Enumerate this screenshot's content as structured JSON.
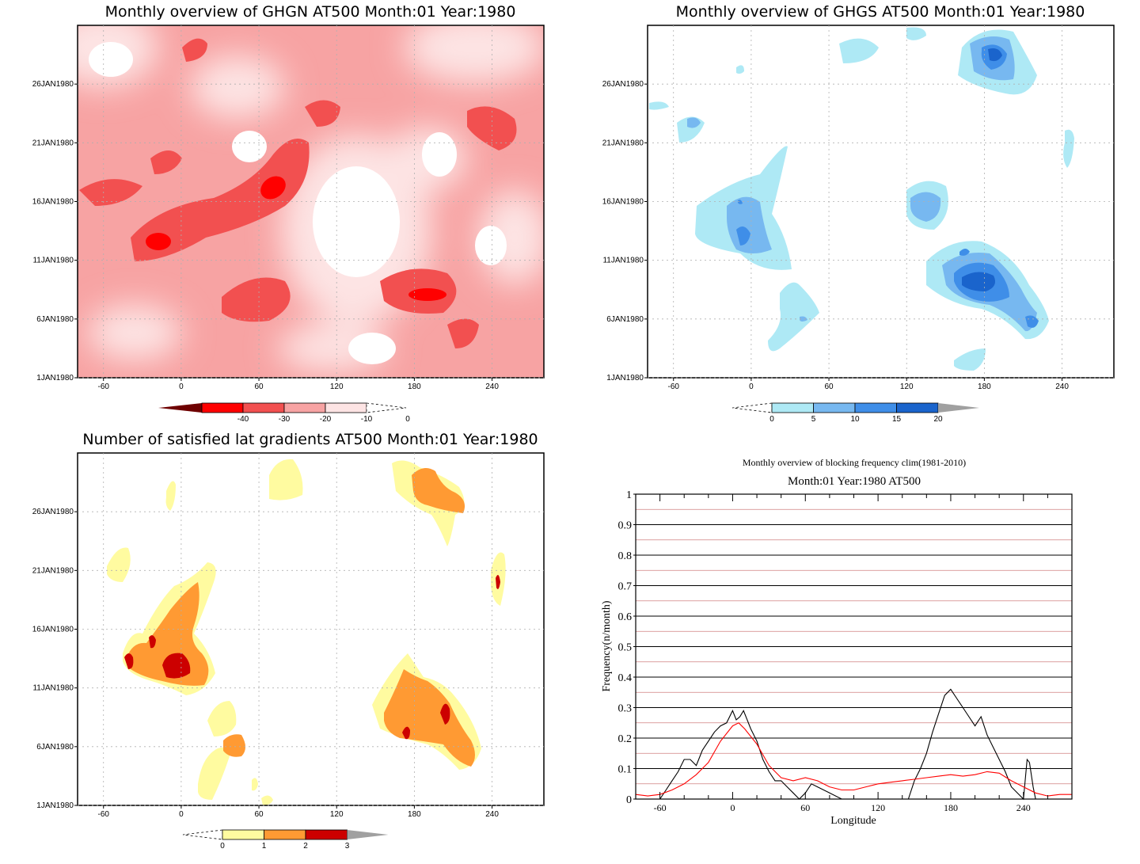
{
  "colors": {
    "ghgn_levels": [
      "#6e0000",
      "#ff0000",
      "#f25050",
      "#f7a3a3",
      "#fde4e4",
      "#ffffff"
    ],
    "ghgs_levels": [
      "#ffffff",
      "#aee9f5",
      "#77b8f0",
      "#3f8ee8",
      "#1a64cc",
      "#a0a0a0"
    ],
    "sat_levels": [
      "#ffffff",
      "#fffba0",
      "#ff9a33",
      "#cc0000",
      "#a0a0a0"
    ],
    "freq_black": "#000000",
    "freq_red": "#ff0000",
    "freq_gridred": "#d08080"
  },
  "x_ticks": [
    "-60",
    "0",
    "60",
    "120",
    "180",
    "240"
  ],
  "y_ticks": [
    "1JAN1980",
    "6JAN1980",
    "11JAN1980",
    "16JAN1980",
    "21JAN1980",
    "26JAN1980"
  ],
  "panels": {
    "ghgn": {
      "title": "Monthly overview of GHGN AT500 Month:01 Year:1980",
      "colorbar_labels": [
        "-40",
        "-30",
        "-20",
        "-10",
        "0"
      ]
    },
    "ghgs": {
      "title": "Monthly overview of GHGS AT500 Month:01 Year:1980",
      "colorbar_labels": [
        "0",
        "5",
        "10",
        "15",
        "20"
      ]
    },
    "sat": {
      "title": "Number of satisfied lat gradients AT500 Month:01 Year:1980",
      "colorbar_labels": [
        "0",
        "1",
        "2",
        "3"
      ]
    }
  },
  "chart_data": [
    {
      "type": "heatmap",
      "title": "Monthly overview of GHGN AT500 Month:01 Year:1980",
      "xlabel": "",
      "ylabel": "",
      "xlim": [
        -80,
        280
      ],
      "ylim": [
        "1JAN1980",
        "31JAN1980"
      ],
      "colorbar": [
        -40,
        -30,
        -20,
        -10,
        0
      ],
      "grid": true,
      "blobs": [
        {
          "lon": -15,
          "day": 12.5,
          "value": -35
        },
        {
          "lon": 75,
          "day": 17,
          "value": -35
        },
        {
          "lon": 185,
          "day": 8.5,
          "value": -35
        },
        {
          "lon": 15,
          "day": 15,
          "value": -25
        },
        {
          "lon": 60,
          "day": 7,
          "value": -25
        },
        {
          "lon": 110,
          "day": 23,
          "value": -25
        },
        {
          "lon": 230,
          "day": 20,
          "value": -25
        }
      ]
    },
    {
      "type": "heatmap",
      "title": "Monthly overview of GHGS AT500 Month:01 Year:1980",
      "xlabel": "",
      "ylabel": "",
      "xlim": [
        -80,
        280
      ],
      "ylim": [
        "1JAN1980",
        "31JAN1980"
      ],
      "colorbar": [
        0,
        5,
        10,
        15,
        20
      ],
      "grid": true,
      "blobs": [
        {
          "lon": 180,
          "day": 29,
          "value": 18
        },
        {
          "lon": 185,
          "day": 9.5,
          "value": 19
        },
        {
          "lon": -8,
          "day": 13,
          "value": 14
        },
        {
          "lon": 140,
          "day": 16,
          "value": 10
        },
        {
          "lon": -45,
          "day": 22,
          "value": 8
        }
      ]
    },
    {
      "type": "heatmap",
      "title": "Number of satisfied lat gradients AT500 Month:01 Year:1980",
      "xlabel": "",
      "ylabel": "",
      "xlim": [
        -80,
        280
      ],
      "ylim": [
        "1JAN1980",
        "31JAN1980"
      ],
      "colorbar": [
        0,
        1,
        2,
        3
      ],
      "grid": true,
      "blobs": [
        {
          "lon": -5,
          "day": 12.5,
          "value": 3
        },
        {
          "lon": 200,
          "day": 9,
          "value": 3
        },
        {
          "lon": 190,
          "day": 28.5,
          "value": 2
        },
        {
          "lon": 5,
          "day": 15,
          "value": 2
        },
        {
          "lon": 40,
          "day": 6.5,
          "value": 2
        },
        {
          "lon": 90,
          "day": 28.5,
          "value": 1
        }
      ]
    },
    {
      "type": "line",
      "title": "Monthly overview of blocking frequency clim(1981-2010)",
      "subtitle": "Month:01 Year:1980  AT500",
      "xlabel": "Longitude",
      "ylabel": "Frequency(n/month)",
      "xlim": [
        -80,
        280
      ],
      "ylim": [
        0,
        1
      ],
      "x_ticks": [
        -60,
        0,
        60,
        120,
        180,
        240
      ],
      "y_ticks": [
        0,
        0.1,
        0.2,
        0.3,
        0.4,
        0.5,
        0.6,
        0.7,
        0.8,
        0.9,
        1
      ],
      "y_tick_labels": [
        "0",
        "0.1",
        "0.2",
        "0.3",
        "0.4",
        "0.5",
        "0.6",
        "0.7",
        "0.8",
        "0.9",
        "1"
      ],
      "x_tick_labels": [
        "-60",
        "0",
        "60",
        "120",
        "180",
        "240"
      ],
      "series": [
        {
          "color": "#000000",
          "x": [
            -80,
            -60,
            -55,
            -50,
            -45,
            -40,
            -35,
            -30,
            -25,
            -20,
            -15,
            -10,
            -5,
            0,
            3,
            6,
            9,
            12,
            15,
            20,
            25,
            30,
            35,
            40,
            45,
            50,
            55,
            60,
            65,
            70,
            80,
            90,
            100,
            110,
            120,
            130,
            140,
            145,
            150,
            155,
            160,
            165,
            170,
            175,
            180,
            185,
            190,
            195,
            200,
            205,
            210,
            215,
            220,
            225,
            230,
            235,
            240,
            243,
            245,
            248,
            250,
            255,
            260,
            270,
            280
          ],
          "y": [
            0,
            0,
            0.03,
            0.06,
            0.09,
            0.13,
            0.13,
            0.11,
            0.16,
            0.19,
            0.22,
            0.24,
            0.25,
            0.29,
            0.26,
            0.27,
            0.29,
            0.26,
            0.23,
            0.19,
            0.13,
            0.09,
            0.06,
            0.06,
            0.04,
            0.02,
            0.0,
            0.02,
            0.05,
            0.04,
            0.02,
            0.0,
            0.0,
            0.0,
            0.0,
            0.0,
            0.0,
            0.0,
            0.06,
            0.1,
            0.15,
            0.22,
            0.28,
            0.34,
            0.36,
            0.33,
            0.3,
            0.27,
            0.24,
            0.27,
            0.21,
            0.17,
            0.13,
            0.09,
            0.04,
            0.02,
            0.0,
            0.13,
            0.12,
            0.04,
            0.0,
            0.0,
            0.0,
            0.0,
            0.0
          ]
        },
        {
          "color": "#ff0000",
          "x": [
            -80,
            -70,
            -60,
            -50,
            -40,
            -30,
            -20,
            -10,
            0,
            5,
            10,
            20,
            30,
            40,
            50,
            60,
            70,
            80,
            90,
            100,
            110,
            120,
            130,
            140,
            150,
            160,
            170,
            180,
            190,
            200,
            210,
            220,
            230,
            240,
            250,
            260,
            270,
            280
          ],
          "y": [
            0.015,
            0.01,
            0.015,
            0.03,
            0.05,
            0.08,
            0.12,
            0.19,
            0.24,
            0.25,
            0.23,
            0.18,
            0.11,
            0.07,
            0.06,
            0.07,
            0.06,
            0.04,
            0.03,
            0.03,
            0.04,
            0.05,
            0.055,
            0.06,
            0.065,
            0.07,
            0.075,
            0.08,
            0.075,
            0.08,
            0.09,
            0.085,
            0.06,
            0.04,
            0.02,
            0.01,
            0.015,
            0.015
          ]
        }
      ]
    }
  ]
}
